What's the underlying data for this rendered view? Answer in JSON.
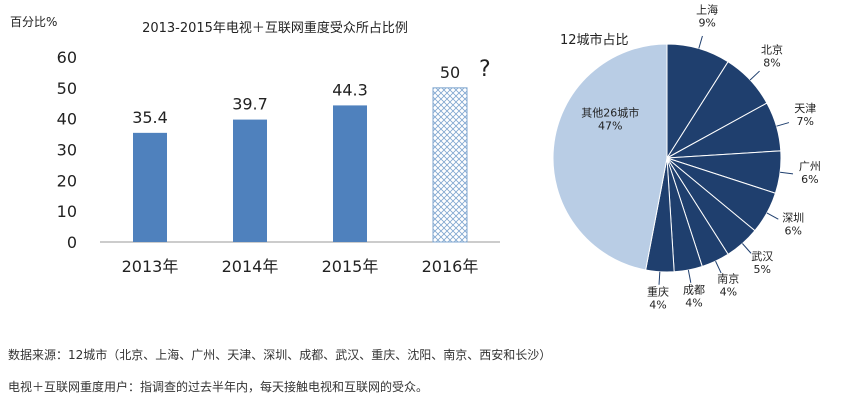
{
  "chart_data": [
    {
      "type": "bar",
      "title": "2013-2015年电视＋互联网重度受众所占比例",
      "ylabel": "百分比%",
      "xlabel": "",
      "categories": [
        "2013年",
        "2014年",
        "2015年",
        "2016年"
      ],
      "values": [
        35.4,
        39.7,
        44.3,
        50
      ],
      "value_labels": [
        "35.4",
        "39.7",
        "44.3",
        "50"
      ],
      "projected": [
        false,
        false,
        false,
        true
      ],
      "projected_mark": "?",
      "ylim": [
        0,
        60
      ],
      "yticks": [
        0,
        10,
        20,
        30,
        40,
        50,
        60
      ],
      "grid": false,
      "colors": {
        "bar": "#4f81bd",
        "projected_bar_stroke": "#7fa6cf"
      }
    },
    {
      "type": "pie",
      "title": "12城市占比",
      "slices": [
        {
          "label": "上海",
          "pct_label": "9%",
          "value": 9,
          "color": "#1f3f6e"
        },
        {
          "label": "北京",
          "pct_label": "8%",
          "value": 8,
          "color": "#1f3f6e"
        },
        {
          "label": "天津",
          "pct_label": "7%",
          "value": 7,
          "color": "#1f3f6e"
        },
        {
          "label": "广州",
          "pct_label": "6%",
          "value": 6,
          "color": "#1f3f6e"
        },
        {
          "label": "深圳",
          "pct_label": "6%",
          "value": 6,
          "color": "#1f3f6e"
        },
        {
          "label": "武汉",
          "pct_label": "5%",
          "value": 5,
          "color": "#1f3f6e"
        },
        {
          "label": "南京",
          "pct_label": "4%",
          "value": 4,
          "color": "#1f3f6e"
        },
        {
          "label": "成都",
          "pct_label": "4%",
          "value": 4,
          "color": "#1f3f6e"
        },
        {
          "label": "重庆",
          "pct_label": "4%",
          "value": 4,
          "color": "#1f3f6e"
        },
        {
          "label": "其他26城市",
          "pct_label": "47%",
          "value": 47,
          "color": "#b9cde5"
        }
      ]
    }
  ],
  "notes": {
    "source": "数据来源：12城市（北京、上海、广州、天津、深圳、成都、武汉、重庆、沈阳、南京、西安和长沙）",
    "definition": "电视＋互联网重度用户：指调查的过去半年内，每天接触电视和互联网的受众。"
  }
}
